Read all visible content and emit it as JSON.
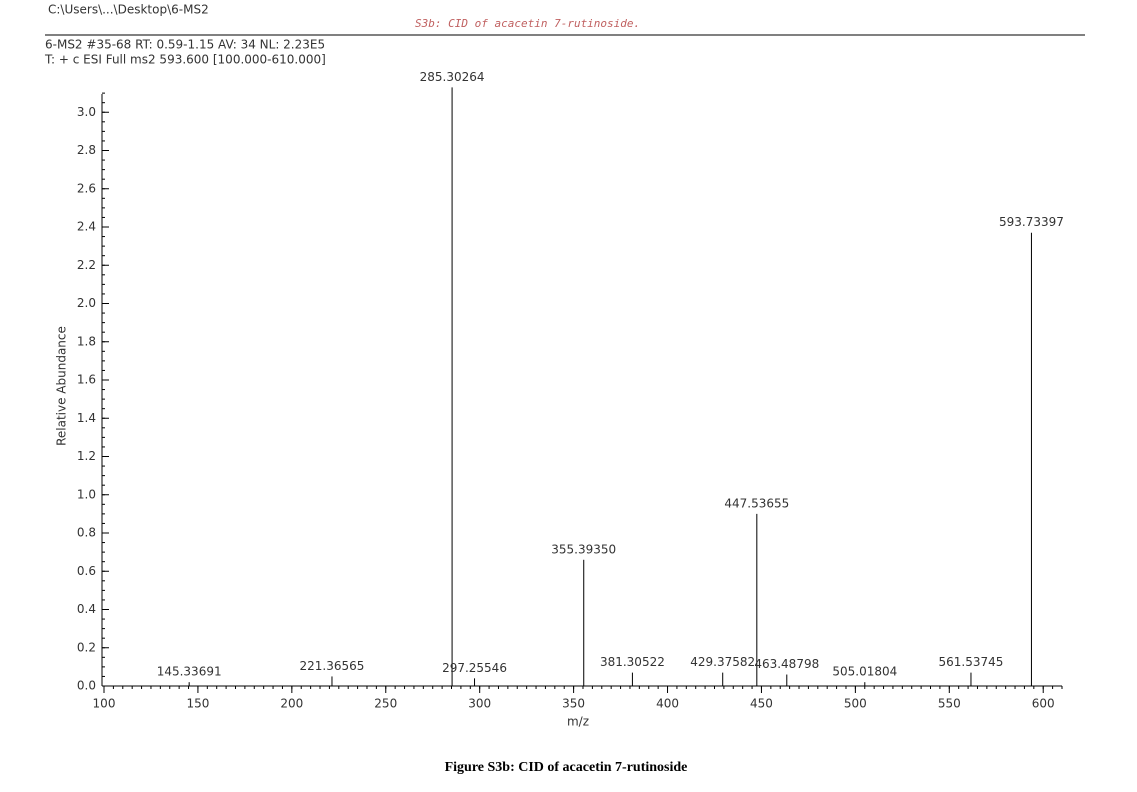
{
  "header": {
    "path": "C:\\Users\\...\\Desktop\\6-MS2",
    "note": "S3b: CID of acacetin 7-rutinoside.",
    "scan": "6-MS2 #35-68  RT: 0.59-1.15  AV: 34  NL: 2.23E5",
    "filter": "T: + c ESI Full ms2 593.600 [100.000-610.000]"
  },
  "chart_data": {
    "type": "stem",
    "xlabel": "m/z",
    "ylabel": "Relative Abundance",
    "color": "#000000",
    "x": [
      145.33691,
      221.36565,
      285.30264,
      297.25546,
      355.3935,
      381.30522,
      429.37582,
      447.53655,
      463.48798,
      505.01804,
      561.53745,
      593.73397
    ],
    "x_labels": [
      "145.33691",
      "221.36565",
      "285.30264",
      "297.25546",
      "355.39350",
      "381.30522",
      "429.37582",
      "447.53655",
      "463.48798",
      "505.01804",
      "561.53745",
      "593.73397"
    ],
    "values": [
      0.02,
      0.05,
      3.13,
      0.04,
      0.66,
      0.07,
      0.07,
      0.9,
      0.06,
      0.02,
      0.07,
      2.37
    ],
    "xlim": [
      100,
      610
    ],
    "ylim": [
      0,
      3.2
    ],
    "xticks": [
      100,
      150,
      200,
      250,
      300,
      350,
      400,
      450,
      500,
      550,
      600
    ],
    "yticks": [
      {
        "value": 0,
        "label": "0.0"
      },
      {
        "value": 0.2,
        "label": "0.2"
      },
      {
        "value": 0.4,
        "label": "0.4"
      },
      {
        "value": 0.6,
        "label": "0.6"
      },
      {
        "value": 0.8,
        "label": "0.8"
      },
      {
        "value": 1,
        "label": "1.0"
      },
      {
        "value": 1.2,
        "label": "1.2"
      },
      {
        "value": 1.4,
        "label": "1.4"
      },
      {
        "value": 1.6,
        "label": "1.6"
      },
      {
        "value": 1.8,
        "label": "1.8"
      },
      {
        "value": 2,
        "label": "2.0"
      },
      {
        "value": 2.2,
        "label": "2.2"
      },
      {
        "value": 2.4,
        "label": "2.4"
      },
      {
        "value": 2.6,
        "label": "2.6"
      },
      {
        "value": 2.8,
        "label": "2.8"
      },
      {
        "value": 3,
        "label": "3.0"
      }
    ]
  },
  "caption": "Figure S3b: CID of acacetin 7-rutinoside"
}
